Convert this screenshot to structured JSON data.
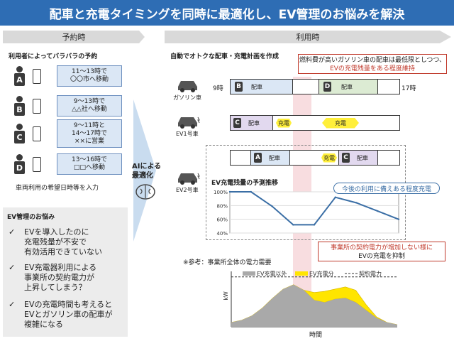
{
  "title": "配車と充電タイミングを同時に最適化し、EV管理のお悩みを解決",
  "left_header": "予約時",
  "right_header": "利用時",
  "reservation_title": "利用者によってバラバラの予約",
  "users": [
    {
      "letter": "A",
      "line1": "11～13時で",
      "line2": "〇〇市へ移動",
      "line3": ""
    },
    {
      "letter": "B",
      "line1": "9～13時で",
      "line2": "△△社へ移動",
      "line3": ""
    },
    {
      "letter": "C",
      "line1": "9～11時と",
      "line2": "14～17時で",
      "line3": "××に営業"
    },
    {
      "letter": "D",
      "line1": "13～16時で",
      "line2": "□□へ移動",
      "line3": ""
    }
  ],
  "input_note": "車両利用の希望日時等を入力",
  "worries_title": "EV管理のお悩み",
  "worries": [
    [
      "EVを導入したのに",
      "充電残量が不安で",
      "有効活用できていない"
    ],
    [
      "EV充電器利用による",
      "事業所の契約電力が",
      "上昇してしまう？"
    ],
    [
      "EVの充電時間も考えると",
      "EVとガソリン車の配車が",
      "複雑になる"
    ]
  ],
  "ai_label_1": "AIによる",
  "ai_label_2": "最適化",
  "plan_title": "自動でオトクな配車・充電計画を作成",
  "note_fuel_1": "燃料費が高いガソリン車の配車は最低限としつつ、",
  "note_fuel_2": "EVの充電残量をある程度維持",
  "time_start": "9時",
  "time_end": "17時",
  "vehicles": {
    "gas": "ガソリン車",
    "ev1": "EV1号車",
    "ev2": "EV2号車"
  },
  "dispatch_label": "配車",
  "charge_label": "充電",
  "rows": {
    "gas": [
      "B",
      "D"
    ],
    "ev1": [
      "C"
    ],
    "ev2": [
      "A",
      "C"
    ]
  },
  "soc_chart_title": "EV充電残量の予測推移",
  "soc_note": "今後の利用に備えある程度充電",
  "peak_note_1": "事業所の契約電力が増加しない様に",
  "peak_note_2": "EVの充電を抑制",
  "reference_label": "※参考：事業所全体の電力需要",
  "colors": {
    "title_bg": "#2e6db4",
    "dispatch_blue": "#dbe7f5",
    "dispatch_purple": "#e2d9ef",
    "dispatch_green": "#dcebd3",
    "charge_yellow": "#ffef3a",
    "highlight_pink": "#f6d5d8",
    "accent_red": "#c0392b",
    "soc_line": "#3a6ea5"
  },
  "chart_data": [
    {
      "type": "line",
      "title": "EV充電残量の予測推移",
      "yticks": [
        "100%",
        "80%",
        "60%",
        "40%"
      ],
      "ylim": [
        40,
        100
      ],
      "x": [
        0,
        1,
        2,
        3,
        4,
        5,
        6,
        7,
        8
      ],
      "series": [
        {
          "name": "",
          "values": [
            100,
            100,
            79,
            52,
            52,
            92,
            84,
            72,
            60
          ]
        }
      ]
    },
    {
      "type": "area",
      "ylabel": "kW",
      "xlabel": "時間",
      "legend": [
        "EV充電以外",
        "EV充電分",
        "契約電力"
      ],
      "x": [
        0,
        1,
        2,
        3,
        4,
        5,
        6,
        7,
        8,
        9,
        10,
        11,
        12,
        13,
        14,
        15,
        16
      ],
      "series": [
        {
          "name": "EV充電以外",
          "values": [
            4,
            6,
            10,
            17,
            26,
            34,
            38,
            33,
            24,
            22,
            25,
            26,
            22,
            15,
            8,
            4,
            2
          ]
        },
        {
          "name": "EV充電分",
          "values": [
            0,
            0,
            0,
            0,
            0,
            0,
            0,
            0,
            7,
            10,
            9,
            10,
            11,
            5,
            1,
            0,
            0
          ]
        }
      ],
      "contract_power": 45,
      "ylim": [
        0,
        50
      ]
    }
  ]
}
